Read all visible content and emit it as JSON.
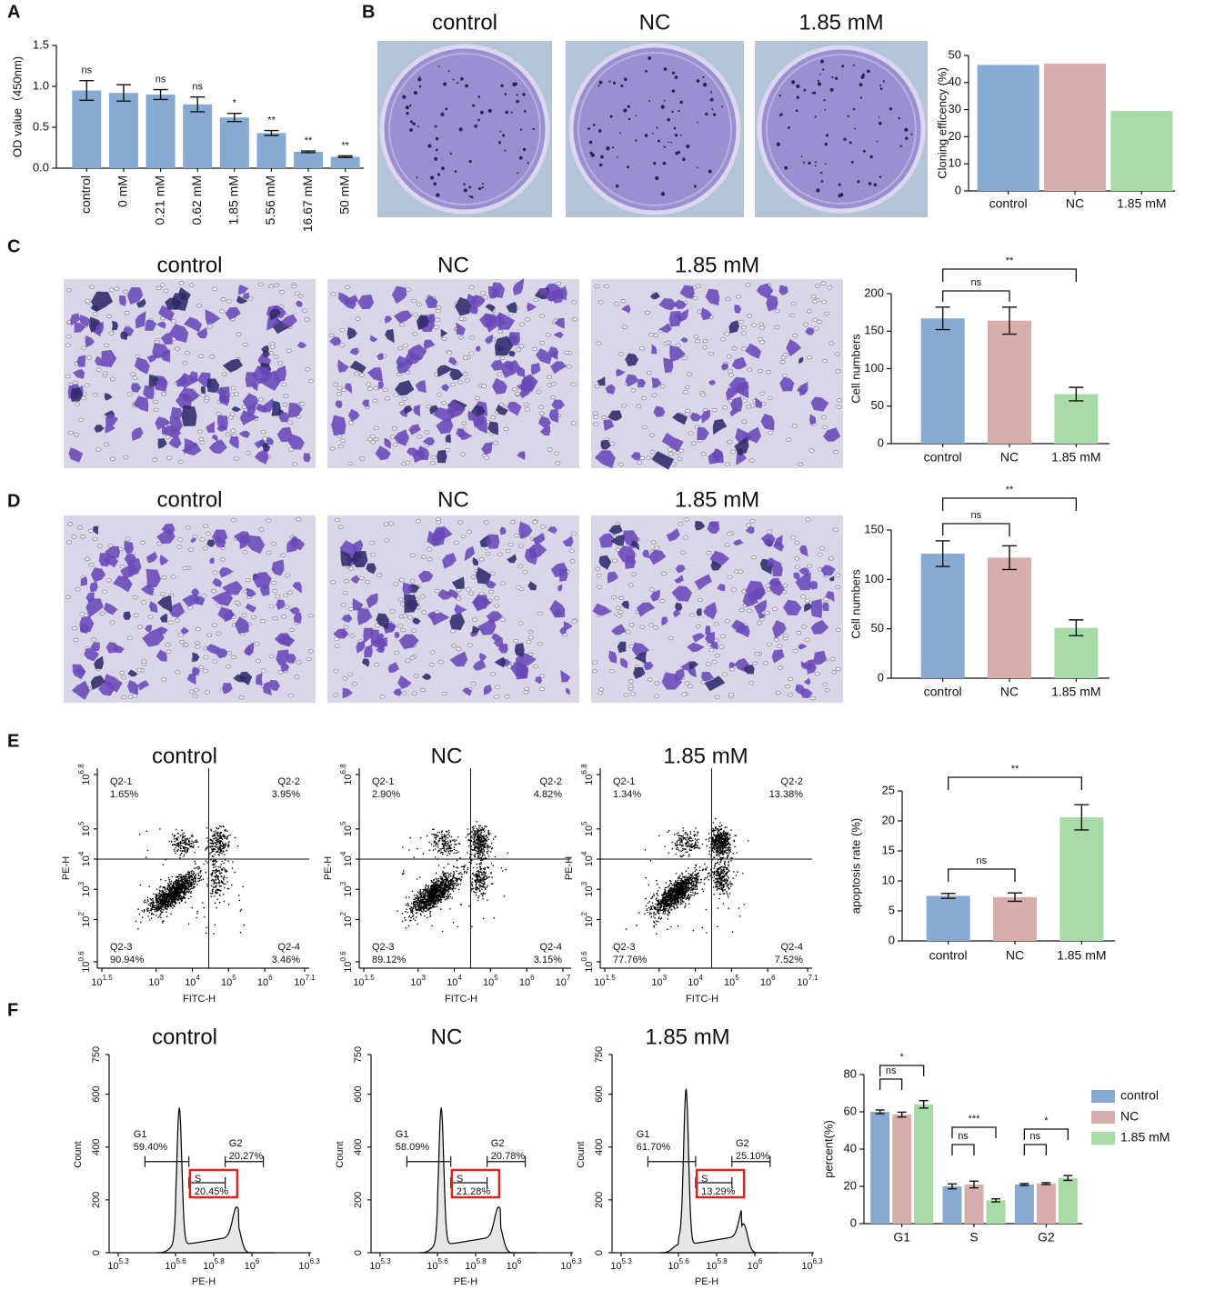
{
  "panels": [
    "A",
    "B",
    "C",
    "D",
    "E",
    "F"
  ],
  "photos": {
    "B": [
      "control",
      "NC",
      "1.85 mM"
    ],
    "C": [
      "control",
      "NC",
      "1.85 mM"
    ],
    "D": [
      "control",
      "NC",
      "1.85 mM"
    ]
  },
  "chart_data": [
    {
      "type": "bar",
      "ylabel": "OD value（450nm)",
      "categories": [
        "control",
        "0 mM",
        "0.21 mM",
        "0.62 mM",
        "1.85 mM",
        "5.56 mM",
        "16.67 mM",
        "50 mM"
      ],
      "values": [
        0.95,
        0.92,
        0.9,
        0.78,
        0.62,
        0.43,
        0.2,
        0.14
      ],
      "errors": [
        0.12,
        0.1,
        0.06,
        0.09,
        0.05,
        0.03,
        0.01,
        0.01
      ],
      "labels": [
        "ns",
        null,
        "ns",
        "ns",
        "*",
        "**",
        "**",
        "**"
      ],
      "color": "#86aad2",
      "ylim": [
        0,
        1.5
      ],
      "yticks": [
        {
          "value": 0,
          "label": "0.0"
        },
        {
          "value": 0.5,
          "label": "0.5"
        },
        {
          "value": 1,
          "label": "1.0"
        },
        {
          "value": 1.5,
          "label": "1.5"
        }
      ]
    },
    {
      "type": "bar",
      "ylabel": "Cloning efficency (%)",
      "categories": [
        "control",
        "NC",
        "1.85 mM"
      ],
      "values": [
        46.5,
        47,
        29.5
      ],
      "colors": [
        "#86aad2",
        "#d8aeab",
        "#a6dba6"
      ],
      "ylim": [
        0,
        50
      ],
      "yticks": [
        0,
        10,
        20,
        30,
        40,
        50
      ]
    },
    {
      "type": "bar",
      "ylabel": "Cell numbers",
      "categories": [
        "control",
        "NC",
        "1.85 mM"
      ],
      "values": [
        167,
        164,
        66
      ],
      "errors": [
        15,
        18,
        9
      ],
      "colors": [
        "#86aad2",
        "#d8aeab",
        "#a6dba6"
      ],
      "ylim": [
        0,
        200
      ],
      "yticks": [
        0,
        50,
        100,
        150,
        200
      ],
      "brackets": [
        {
          "pair": [
            "control",
            "NC"
          ],
          "label": "ns"
        },
        {
          "pair": [
            "control",
            "1.85 mM"
          ],
          "label": "**"
        }
      ]
    },
    {
      "type": "bar",
      "ylabel": "Cell numbers",
      "categories": [
        "control",
        "NC",
        "1.85 mM"
      ],
      "values": [
        126,
        122,
        51
      ],
      "errors": [
        13,
        12,
        8
      ],
      "colors": [
        "#86aad2",
        "#d8aeab",
        "#a6dba6"
      ],
      "ylim": [
        0,
        150
      ],
      "yticks": [
        0,
        50,
        100,
        150
      ],
      "brackets": [
        {
          "pair": [
            "control",
            "NC"
          ],
          "label": "ns"
        },
        {
          "pair": [
            "control",
            "1.85 mM"
          ],
          "label": "**"
        }
      ]
    },
    {
      "type": "bar",
      "ylabel": "apoptosis rate (%)",
      "categories": [
        "control",
        "NC",
        "1.85 mM"
      ],
      "values": [
        7.5,
        7.3,
        20.6
      ],
      "errors": [
        0.4,
        0.7,
        2.1
      ],
      "colors": [
        "#86aad2",
        "#d8aeab",
        "#a6dba6"
      ],
      "ylim": [
        0,
        25
      ],
      "yticks": [
        0,
        5,
        10,
        15,
        20,
        25
      ],
      "brackets": [
        {
          "pair": [
            "control",
            "NC"
          ],
          "label": "ns"
        },
        {
          "pair": [
            "control",
            "1.85 mM"
          ],
          "label": "**"
        }
      ]
    },
    {
      "type": "grouped_bar",
      "ylabel": "percent(%)",
      "categories": [
        "G1",
        "S",
        "G2"
      ],
      "series": [
        {
          "name": "control",
          "color": "#86aad2",
          "values": [
            60,
            20,
            21
          ],
          "errors": [
            1,
            1.3,
            0.5
          ]
        },
        {
          "name": "NC",
          "color": "#d8aeab",
          "values": [
            58.5,
            21,
            21.5
          ],
          "errors": [
            1.3,
            1.8,
            0.5
          ]
        },
        {
          "name": "1.85 mM",
          "color": "#a6dba6",
          "values": [
            64,
            12.5,
            24.5
          ],
          "errors": [
            2,
            0.8,
            1.3
          ]
        }
      ],
      "ylim": [
        0,
        80
      ],
      "yticks": [
        0,
        20,
        40,
        60,
        80
      ],
      "legend": "right",
      "brackets": [
        {
          "group": "G1",
          "pair": [
            "control",
            "NC"
          ],
          "label": "ns"
        },
        {
          "group": "G1",
          "pair": [
            "control",
            "1.85 mM"
          ],
          "label": "*"
        },
        {
          "group": "S",
          "pair": [
            "control",
            "NC"
          ],
          "label": "ns"
        },
        {
          "group": "S",
          "pair": [
            "control",
            "1.85 mM"
          ],
          "label": "***"
        },
        {
          "group": "G2",
          "pair": [
            "control",
            "NC"
          ],
          "label": "ns"
        },
        {
          "group": "G2",
          "pair": [
            "control",
            "1.85 mM"
          ],
          "label": "*"
        }
      ]
    }
  ],
  "flow": {
    "ylabel": "PE-H",
    "xlabel": "FITC-H",
    "yticks": [
      {
        "base": "10",
        "exp": 0.6
      },
      {
        "base": "10",
        "exp": 2
      },
      {
        "base": "10",
        "exp": 3
      },
      {
        "base": "10",
        "exp": 4
      },
      {
        "base": "10",
        "exp": 5
      },
      {
        "base": "10",
        "exp": 6.8
      }
    ],
    "plots": [
      {
        "title": "control",
        "xticks": [
          {
            "base": "10",
            "exp": 1.5
          },
          {
            "base": "10",
            "exp": 3
          },
          {
            "base": "10",
            "exp": 4
          },
          {
            "base": "10",
            "exp": 5
          },
          {
            "base": "10",
            "exp": 6
          },
          {
            "base": "10",
            "exp": 7.1
          }
        ],
        "quadrants": [
          {
            "name": "Q2-1",
            "value": "1.65%"
          },
          {
            "name": "Q2-2",
            "value": "3.95%"
          },
          {
            "name": "Q2-3",
            "value": "90.94%"
          },
          {
            "name": "Q2-4",
            "value": "3.46%"
          }
        ]
      },
      {
        "title": "NC",
        "xticks": [
          {
            "base": "10",
            "exp": 1.5
          },
          {
            "base": "10",
            "exp": 3
          },
          {
            "base": "10",
            "exp": 4
          },
          {
            "base": "10",
            "exp": 5
          },
          {
            "base": "10",
            "exp": 6
          },
          {
            "base": "10",
            "exp": 7
          }
        ],
        "quadrants": [
          {
            "name": "Q2-1",
            "value": "2.90%"
          },
          {
            "name": "Q2-2",
            "value": "4.82%"
          },
          {
            "name": "Q2-3",
            "value": "89.12%"
          },
          {
            "name": "Q2-4",
            "value": "3.15%"
          }
        ]
      },
      {
        "title": "1.85 mM",
        "xticks": [
          {
            "base": "10",
            "exp": 1.5
          },
          {
            "base": "10",
            "exp": 3
          },
          {
            "base": "10",
            "exp": 4
          },
          {
            "base": "10",
            "exp": 5
          },
          {
            "base": "10",
            "exp": 6
          },
          {
            "base": "10",
            "exp": 7.1
          }
        ],
        "quadrants": [
          {
            "name": "Q2-1",
            "value": "1.34%"
          },
          {
            "name": "Q2-2",
            "value": "13.38%"
          },
          {
            "name": "Q2-3",
            "value": "77.76%"
          },
          {
            "name": "Q2-4",
            "value": "7.52%"
          }
        ]
      }
    ]
  },
  "cell_cycle": {
    "ylabel": "Count",
    "xlabel": "PE-H",
    "ylim": [
      0,
      750
    ],
    "yticks": [
      0,
      200,
      400,
      600,
      750
    ],
    "xticks": [
      {
        "base": "10",
        "exp": 5.3
      },
      {
        "base": "10",
        "exp": 5.6
      },
      {
        "base": "10",
        "exp": 5.8
      },
      {
        "base": "10",
        "exp": 6
      },
      {
        "base": "10",
        "exp": 6.3
      }
    ],
    "plots": [
      {
        "title": "control",
        "gates": [
          {
            "name": "G1",
            "value": "59.40%"
          },
          {
            "name": "G2",
            "value": "20.27%"
          },
          {
            "name": "S",
            "value": "20.45%"
          }
        ]
      },
      {
        "title": "NC",
        "gates": [
          {
            "name": "G1",
            "value": "58.09%"
          },
          {
            "name": "G2",
            "value": "20.78%"
          },
          {
            "name": "S",
            "value": "21.28%"
          }
        ]
      },
      {
        "title": "1.85 mM",
        "gates": [
          {
            "name": "G1",
            "value": "61.70%"
          },
          {
            "name": "G2",
            "value": "25.10%"
          },
          {
            "name": "S",
            "value": "13.29%"
          }
        ]
      }
    ]
  }
}
